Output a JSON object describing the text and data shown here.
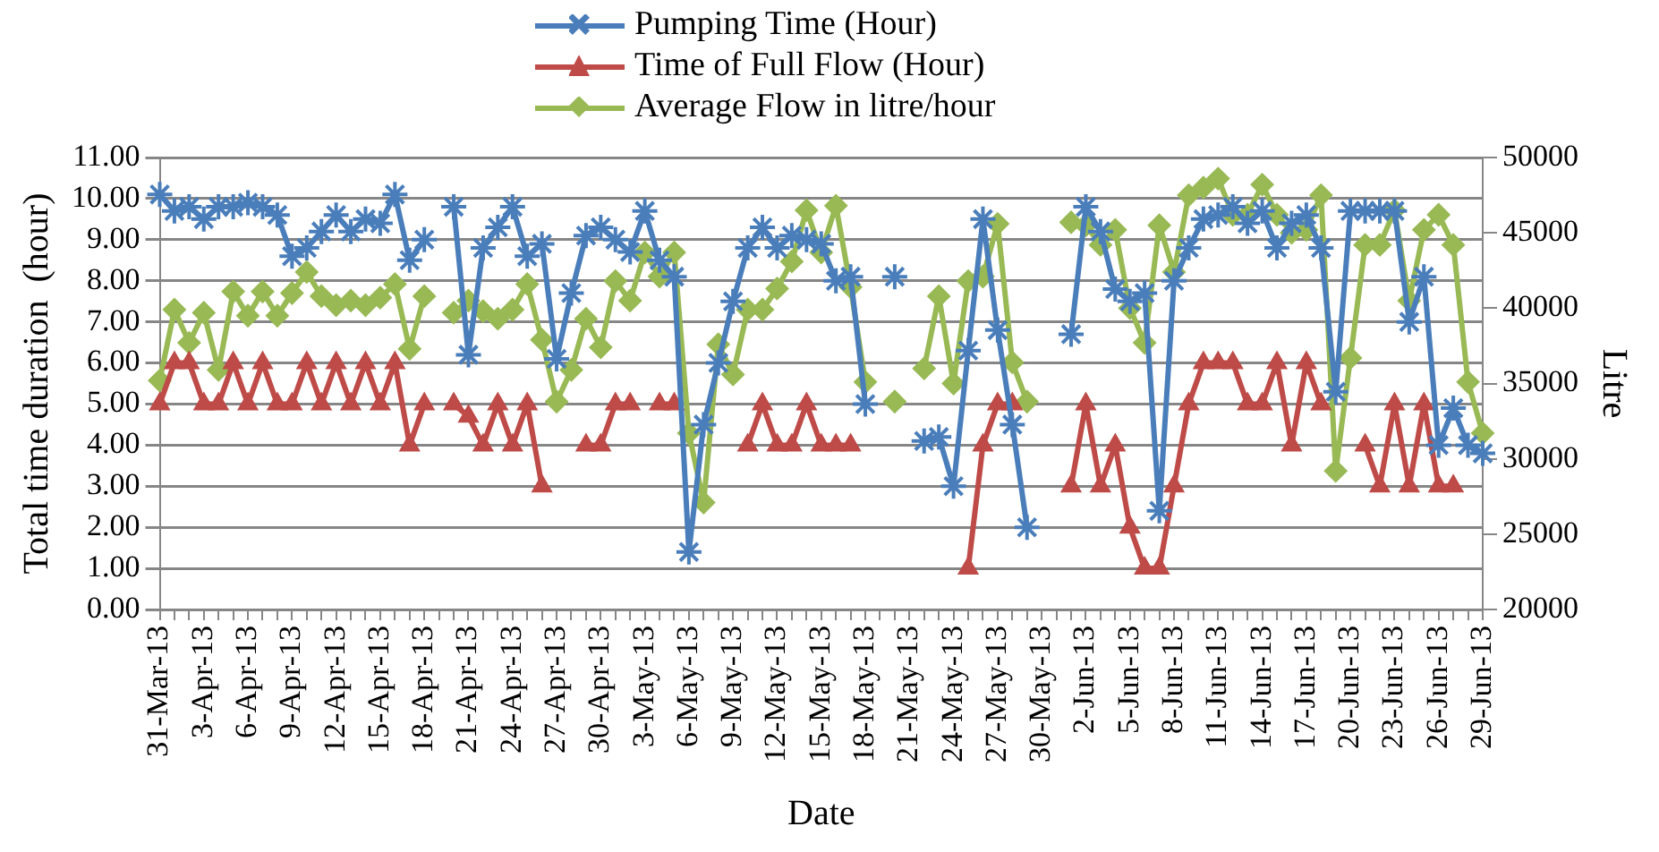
{
  "chart_data": {
    "type": "line",
    "xlabel": "Date",
    "ylabel": "Total time duration  (hour)",
    "y2label": "Litre",
    "categories": [
      "31-Mar-13",
      null,
      null,
      "3-Apr-13",
      null,
      null,
      "6-Apr-13",
      null,
      null,
      "9-Apr-13",
      null,
      null,
      "12-Apr-13",
      null,
      null,
      "15-Apr-13",
      null,
      null,
      "18-Apr-13",
      null,
      null,
      "21-Apr-13",
      null,
      null,
      "24-Apr-13",
      null,
      null,
      "27-Apr-13",
      null,
      null,
      "30-Apr-13",
      null,
      null,
      "3-May-13",
      null,
      null,
      "6-May-13",
      null,
      null,
      "9-May-13",
      null,
      null,
      "12-May-13",
      null,
      null,
      "15-May-13",
      null,
      null,
      "18-May-13",
      null,
      null,
      "21-May-13",
      null,
      null,
      "24-May-13",
      null,
      null,
      "27-May-13",
      null,
      null,
      "30-May-13",
      null,
      null,
      "2-Jun-13",
      null,
      null,
      "5-Jun-13",
      null,
      null,
      "8-Jun-13",
      null,
      null,
      "11-Jun-13",
      null,
      null,
      "14-Jun-13",
      null,
      null,
      "17-Jun-13",
      null,
      null,
      "20-Jun-13",
      null,
      null,
      "23-Jun-13",
      null,
      null,
      "26-Jun-13",
      null,
      null,
      "29-Jun-13"
    ],
    "series": [
      {
        "name": "Pumping Time (Hour)",
        "color": "#4a7ebb",
        "marker": "cross",
        "values": [
          10.1,
          9.7,
          9.8,
          9.5,
          9.8,
          9.8,
          9.9,
          9.8,
          9.6,
          8.6,
          8.8,
          9.2,
          9.6,
          9.2,
          9.5,
          9.4,
          10.1,
          8.5,
          9.0,
          null,
          9.8,
          6.2,
          8.8,
          9.3,
          9.8,
          8.6,
          8.9,
          6.1,
          7.7,
          9.1,
          9.3,
          9.0,
          8.7,
          9.7,
          8.5,
          8.1,
          1.4,
          4.5,
          6.0,
          7.5,
          8.8,
          9.3,
          8.8,
          9.1,
          9.0,
          8.9,
          8.0,
          8.1,
          5.0,
          null,
          8.1,
          null,
          4.1,
          4.2,
          3.0,
          6.3,
          9.5,
          6.8,
          4.5,
          2.0,
          null,
          null,
          6.7,
          9.8,
          9.2,
          7.8,
          7.5,
          7.7,
          2.4,
          8.0,
          8.8,
          9.5,
          9.6,
          9.8,
          9.4,
          9.7,
          8.8,
          9.4,
          9.6,
          8.8,
          5.3,
          9.7,
          9.7,
          9.7,
          9.7,
          7.0,
          8.1,
          4.0,
          4.9,
          4.0,
          3.8
        ]
      },
      {
        "name": "Time of Full Flow (Hour)",
        "color": "#be4b48",
        "marker": "triangle",
        "values": [
          5,
          6,
          6,
          5,
          5,
          6,
          5,
          6,
          5,
          5,
          6,
          5,
          6,
          5,
          6,
          5,
          6,
          4,
          5,
          null,
          5,
          4.7,
          4,
          5,
          4,
          5,
          3,
          null,
          null,
          4,
          4,
          5,
          5,
          null,
          5,
          5,
          null,
          null,
          null,
          null,
          4,
          5,
          4,
          4,
          5,
          4,
          4,
          4,
          null,
          null,
          null,
          null,
          null,
          null,
          null,
          1,
          4,
          5,
          5,
          null,
          null,
          null,
          3,
          5,
          3,
          4,
          2,
          1,
          1,
          3,
          5,
          6,
          6,
          6,
          5,
          5,
          6,
          4,
          6,
          5,
          null,
          null,
          4,
          3,
          5,
          3,
          5,
          3,
          3,
          null,
          null
        ]
      },
      {
        "name": "Average Flow in litre/hour",
        "color": "#98b954",
        "marker": "diamond",
        "axis": "y2",
        "values": [
          35200,
          39900,
          37700,
          39700,
          35900,
          41100,
          39500,
          41100,
          39500,
          41000,
          42400,
          40800,
          40200,
          40500,
          40200,
          40700,
          41600,
          37300,
          40800,
          null,
          39700,
          40500,
          39800,
          39300,
          39900,
          41600,
          37900,
          33800,
          35900,
          39300,
          37400,
          41800,
          40500,
          43700,
          42100,
          43700,
          31700,
          27100,
          37600,
          35600,
          39900,
          39900,
          41300,
          43100,
          46500,
          43700,
          46800,
          41400,
          35100,
          null,
          33800,
          null,
          36000,
          40800,
          35000,
          41800,
          42100,
          45600,
          36400,
          33800,
          null,
          null,
          45700,
          45500,
          44200,
          45200,
          40000,
          37700,
          45500,
          42400,
          47500,
          48000,
          48600,
          46200,
          46200,
          48200,
          46200,
          45000,
          45200,
          47500,
          29200,
          36700,
          44200,
          44200,
          46500,
          40500,
          45200,
          46200,
          44200,
          35100,
          31700
        ]
      }
    ],
    "ylim": [
      0,
      11
    ],
    "yticks": [
      {
        "value": 0,
        "label": "0.00"
      },
      {
        "value": 1,
        "label": "1.00"
      },
      {
        "value": 2,
        "label": "2.00"
      },
      {
        "value": 3,
        "label": "3.00"
      },
      {
        "value": 4,
        "label": "4.00"
      },
      {
        "value": 5,
        "label": "5.00"
      },
      {
        "value": 6,
        "label": "6.00"
      },
      {
        "value": 7,
        "label": "7.00"
      },
      {
        "value": 8,
        "label": "8.00"
      },
      {
        "value": 9,
        "label": "9.00"
      },
      {
        "value": 10,
        "label": "10.00"
      },
      {
        "value": 11,
        "label": "11.00"
      }
    ],
    "y2lim": [
      20000,
      50000
    ],
    "y2ticks": [
      20000,
      25000,
      30000,
      35000,
      40000,
      45000,
      50000
    ],
    "grid": "y",
    "legend": "top",
    "line_style": "solid"
  }
}
